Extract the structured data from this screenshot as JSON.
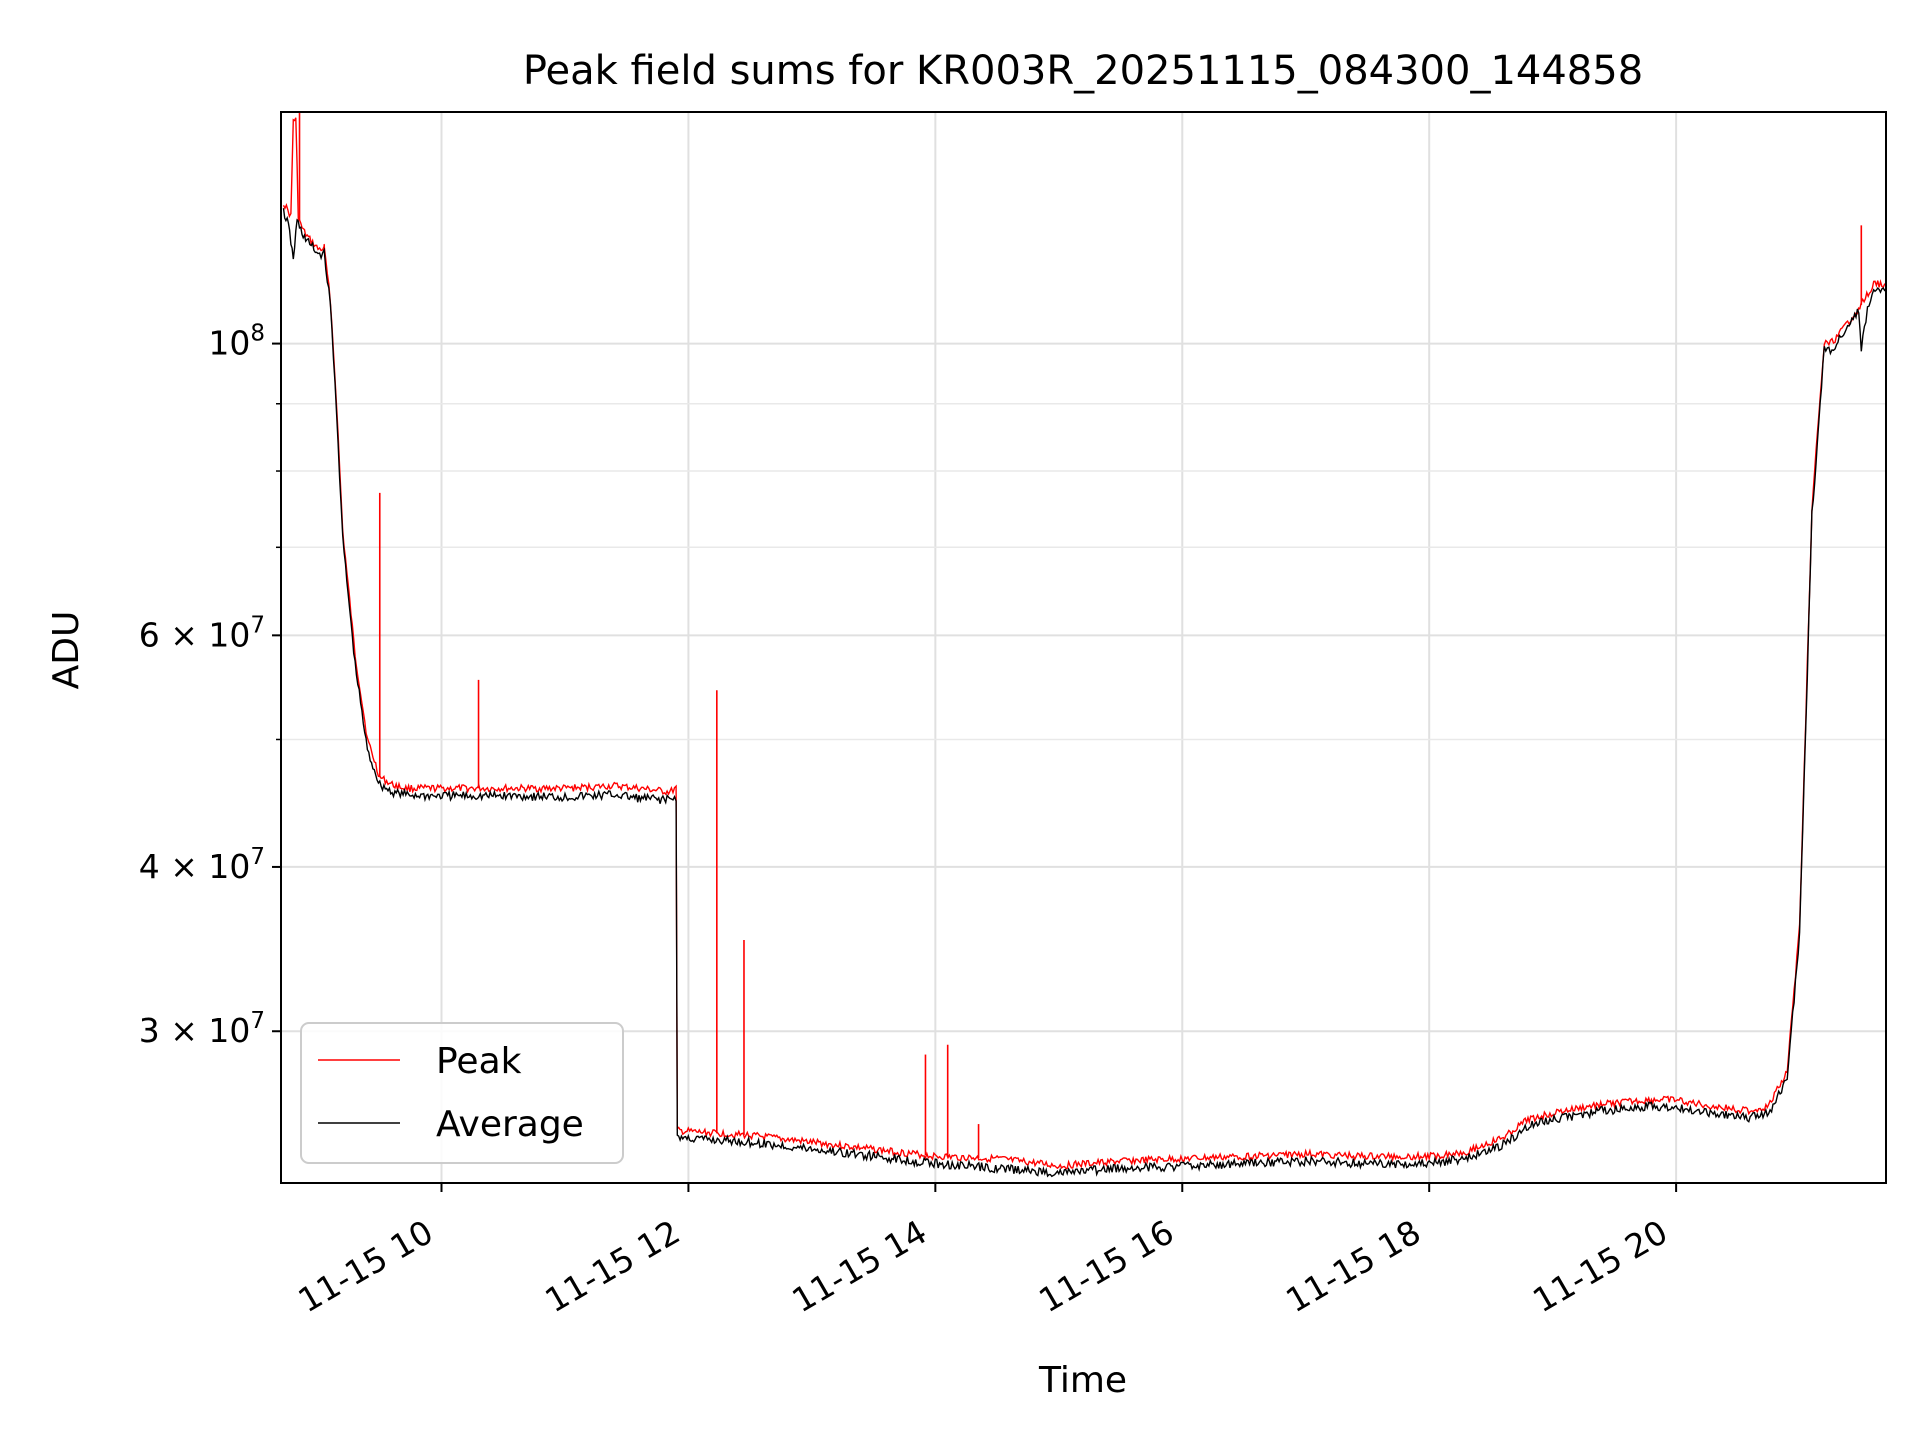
{
  "chart_data": {
    "type": "line",
    "title": "Peak field sums for KR003R_20251115_084300_144858",
    "xlabel": "Time",
    "ylabel": "ADU",
    "yscale": "log",
    "xlim": [
      8.7,
      21.7
    ],
    "ylim": [
      23000000,
      150000000
    ],
    "grid": true,
    "legend_position": "lower-left",
    "x_ticks": [
      {
        "value": 10,
        "label": "11-15 10"
      },
      {
        "value": 12,
        "label": "11-15 12"
      },
      {
        "value": 14,
        "label": "11-15 14"
      },
      {
        "value": 16,
        "label": "11-15 16"
      },
      {
        "value": 18,
        "label": "11-15 18"
      },
      {
        "value": 20,
        "label": "11-15 20"
      }
    ],
    "y_ticks": [
      {
        "value": 100000000,
        "base": "10",
        "exp": "8",
        "mant": ""
      },
      {
        "value": 60000000,
        "base": "10",
        "exp": "7",
        "mant": "6 × "
      },
      {
        "value": 40000000,
        "base": "10",
        "exp": "7",
        "mant": "4 × "
      },
      {
        "value": 30000000,
        "base": "10",
        "exp": "7",
        "mant": "3 × "
      }
    ],
    "y_minor_ticks": [
      90000000,
      80000000,
      70000000,
      50000000
    ],
    "series": [
      {
        "name": "Peak",
        "color": "#ff0000",
        "x": [
          8.72,
          8.78,
          8.8,
          8.82,
          8.84,
          8.86,
          8.9,
          9.0,
          9.05,
          9.1,
          9.15,
          9.2,
          9.3,
          9.4,
          9.5,
          9.6,
          9.7,
          9.9,
          10.2,
          10.6,
          11.0,
          11.4,
          11.6,
          11.85,
          11.9,
          11.91,
          12.2,
          12.5,
          13.0,
          13.5,
          14.0,
          14.5,
          15.0,
          15.5,
          16.0,
          16.5,
          17.0,
          17.5,
          18.0,
          18.3,
          18.6,
          18.8,
          19.0,
          19.2,
          19.4,
          19.6,
          19.8,
          20.0,
          20.3,
          20.6,
          20.75,
          20.9,
          21.0,
          21.05,
          21.1,
          21.2,
          21.25,
          21.3,
          21.4,
          21.5,
          21.6,
          21.7
        ],
        "values": [
          128000000,
          125000000,
          148000000,
          148000000,
          125000000,
          123000000,
          121000000,
          118000000,
          118000000,
          108000000,
          90000000,
          72000000,
          58000000,
          50000000,
          46800000,
          46200000,
          45900000,
          45900000,
          45900000,
          45900000,
          45900000,
          46100000,
          45900000,
          45600000,
          45900000,
          25200000,
          25100000,
          25000000,
          24700000,
          24400000,
          24100000,
          24000000,
          23700000,
          23900000,
          24000000,
          24100000,
          24200000,
          24100000,
          24100000,
          24300000,
          24900000,
          25700000,
          26000000,
          26200000,
          26400000,
          26500000,
          26600000,
          26600000,
          26300000,
          26100000,
          26300000,
          28000000,
          36000000,
          52000000,
          75000000,
          100000000,
          100000000,
          101000000,
          104000000,
          107000000,
          111000000,
          111000000
        ],
        "spikes": [
          {
            "x": 8.85,
            "y": 150000000
          },
          {
            "x": 9.05,
            "y": 119000000
          },
          {
            "x": 9.5,
            "y": 77000000
          },
          {
            "x": 10.3,
            "y": 55500000
          },
          {
            "x": 12.23,
            "y": 54500000
          },
          {
            "x": 12.45,
            "y": 35200000
          },
          {
            "x": 13.92,
            "y": 28800000
          },
          {
            "x": 14.1,
            "y": 29300000
          },
          {
            "x": 14.35,
            "y": 25500000
          },
          {
            "x": 21.5,
            "y": 123000000
          }
        ]
      },
      {
        "name": "Average",
        "color": "#000000",
        "x": [
          8.72,
          8.76,
          8.8,
          8.83,
          8.86,
          8.9,
          9.0,
          9.05,
          9.1,
          9.15,
          9.2,
          9.3,
          9.4,
          9.5,
          9.6,
          9.7,
          9.9,
          10.2,
          10.6,
          11.0,
          11.4,
          11.6,
          11.85,
          11.9,
          11.91,
          12.2,
          12.5,
          13.0,
          13.5,
          14.0,
          14.5,
          15.0,
          15.5,
          16.0,
          16.5,
          17.0,
          17.5,
          18.0,
          18.3,
          18.6,
          18.8,
          19.0,
          19.2,
          19.4,
          19.6,
          19.8,
          20.0,
          20.3,
          20.6,
          20.75,
          20.9,
          21.0,
          21.05,
          21.1,
          21.2,
          21.25,
          21.3,
          21.4,
          21.48,
          21.5,
          21.55,
          21.6,
          21.7
        ],
        "values": [
          126000000,
          123000000,
          116000000,
          124000000,
          122000000,
          120000000,
          117000000,
          117000000,
          107000000,
          89000000,
          71000000,
          57000000,
          49000000,
          46200000,
          45600000,
          45400000,
          45300000,
          45300000,
          45300000,
          45200000,
          45400000,
          45100000,
          45000000,
          45200000,
          24900000,
          24800000,
          24700000,
          24400000,
          24100000,
          23800000,
          23600000,
          23400000,
          23600000,
          23700000,
          23800000,
          23900000,
          23800000,
          23800000,
          24000000,
          24600000,
          25400000,
          25700000,
          25900000,
          26100000,
          26200000,
          26300000,
          26300000,
          26000000,
          25800000,
          26000000,
          27600000,
          35500000,
          51000000,
          74000000,
          99000000,
          99000000,
          100000000,
          103000000,
          106000000,
          99000000,
          106000000,
          110000000,
          110000000
        ],
        "spikes": []
      }
    ]
  }
}
